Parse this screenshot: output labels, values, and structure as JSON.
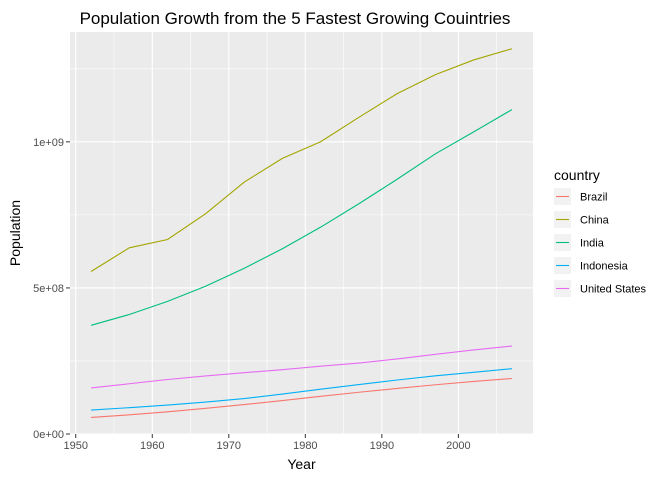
{
  "chart_data": {
    "type": "line",
    "title": "Population Growth from the 5 Fastest Growing Couintries",
    "xlabel": "Year",
    "ylabel": "Population",
    "xlim": [
      1949.25,
      2009.75
    ],
    "ylim": [
      0,
      1376000000
    ],
    "x_ticks": [
      {
        "value": 1950,
        "label": "1950"
      },
      {
        "value": 1960,
        "label": "1960"
      },
      {
        "value": 1970,
        "label": "1970"
      },
      {
        "value": 1980,
        "label": "1980"
      },
      {
        "value": 1990,
        "label": "1990"
      },
      {
        "value": 2000,
        "label": "2000"
      }
    ],
    "y_ticks": [
      {
        "value": 0,
        "label": "0e+00"
      },
      {
        "value": 500000000,
        "label": "5e+08"
      },
      {
        "value": 1000000000,
        "label": "1e+09"
      }
    ],
    "grid": true,
    "legend": {
      "title": "country",
      "position": "right"
    },
    "x": [
      1952,
      1957,
      1962,
      1967,
      1972,
      1977,
      1982,
      1987,
      1992,
      1997,
      2002,
      2007
    ],
    "series": [
      {
        "name": "Brazil",
        "color": "#F8766D",
        "values": [
          56602560,
          65551171,
          76039390,
          88049823,
          100840058,
          114313951,
          128962939,
          142938076,
          155975974,
          168546719,
          179914212,
          190010647
        ]
      },
      {
        "name": "China",
        "color": "#A3A500",
        "values": [
          556263527,
          637408000,
          665770000,
          754550000,
          862030000,
          943455000,
          1000281000,
          1084035000,
          1164970000,
          1230075000,
          1280400000,
          1318683096
        ]
      },
      {
        "name": "India",
        "color": "#00BF7D",
        "values": [
          372000000,
          409000000,
          454000000,
          506000000,
          567000000,
          634000000,
          708000000,
          788000000,
          872000000,
          959000000,
          1034172547,
          1110396331
        ]
      },
      {
        "name": "Indonesia",
        "color": "#00B0F6",
        "values": [
          82052000,
          90124000,
          99028000,
          109343000,
          121282000,
          136725000,
          153343000,
          169276000,
          184816000,
          199278000,
          211060000,
          223547000
        ]
      },
      {
        "name": "United States",
        "color": "#E76BF3",
        "values": [
          157553000,
          171984000,
          186538000,
          198712000,
          209896000,
          220239000,
          232187835,
          242803533,
          256894189,
          272911760,
          287675526,
          301139947
        ]
      }
    ]
  }
}
